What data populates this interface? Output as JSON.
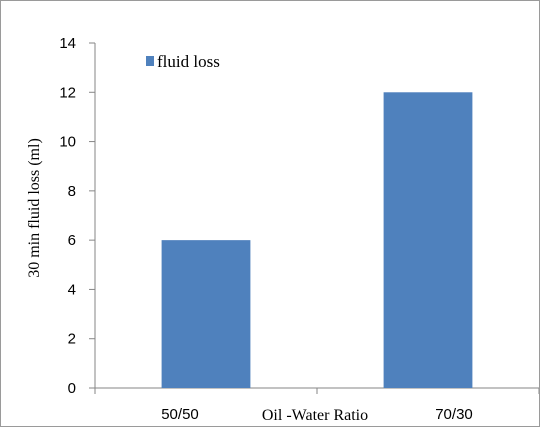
{
  "chart_data": {
    "type": "bar",
    "categories": [
      "50/50",
      "70/30"
    ],
    "series": [
      {
        "name": "fluid loss",
        "values": [
          6,
          12
        ],
        "color": "#4f81bd"
      }
    ],
    "xlabel": "Oil -Water Ratio",
    "ylabel": "30 min fluid loss (ml)",
    "ylim": [
      0,
      14
    ],
    "yticks": [
      0,
      2,
      4,
      6,
      8,
      10,
      12,
      14
    ],
    "grid": false,
    "legend": "top-left"
  }
}
